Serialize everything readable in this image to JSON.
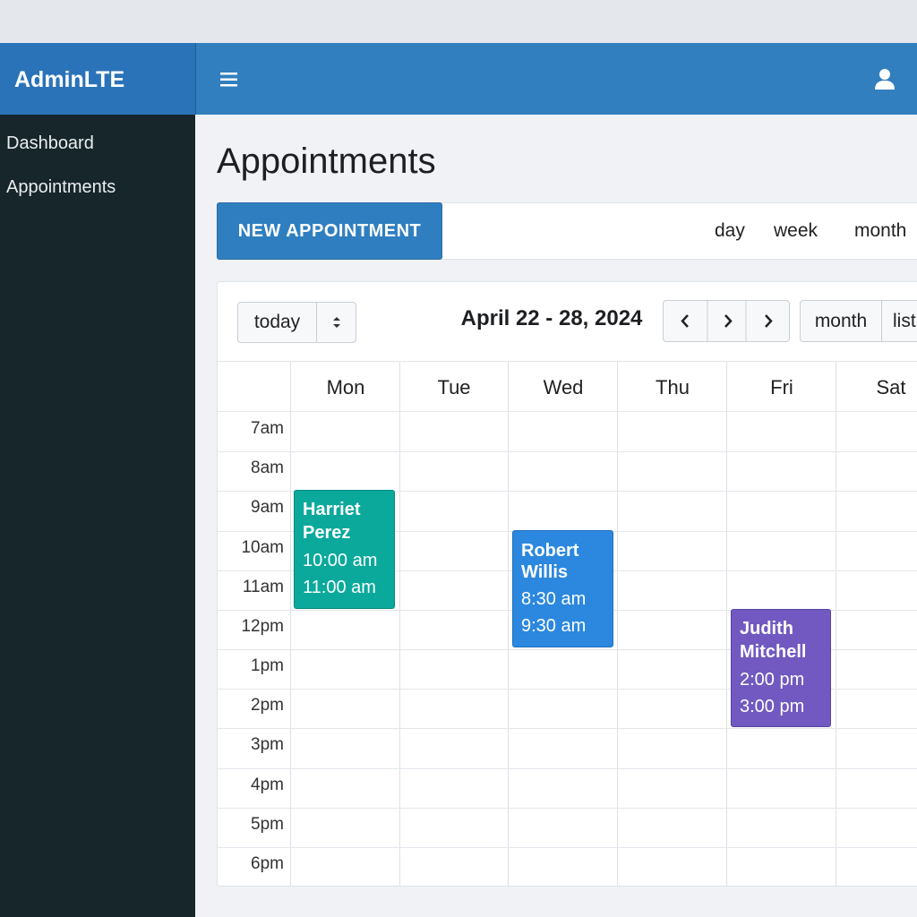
{
  "brand": "AdminLTE",
  "sidebar": {
    "items": [
      "Dashboard",
      "Appointments"
    ]
  },
  "page": {
    "title": "Appointments"
  },
  "toolbar": {
    "button": "NEW APPOINTMENT",
    "views": [
      "day",
      "week",
      "month"
    ]
  },
  "calendar": {
    "today": "today",
    "range": "April 22 - 28, 2024",
    "views": [
      "month",
      "list"
    ],
    "days": [
      "Mon",
      "Tue",
      "Wed",
      "Thu",
      "Fri",
      "Sat"
    ],
    "times": [
      "7am",
      "8am",
      "9am",
      "10am",
      "11am",
      "12pm",
      "1pm",
      "2pm",
      "3pm",
      "4pm",
      "5pm",
      "6pm"
    ],
    "events": [
      {
        "title": "Harriet Perez",
        "start": "10:00 am",
        "end": "11:00 am"
      },
      {
        "title": "Robert Willis",
        "start": "8:30 am",
        "end": "9:30 am"
      },
      {
        "title": "Judith Mitchell",
        "start": "2:00 pm",
        "end": "3:00 pm"
      }
    ]
  }
}
